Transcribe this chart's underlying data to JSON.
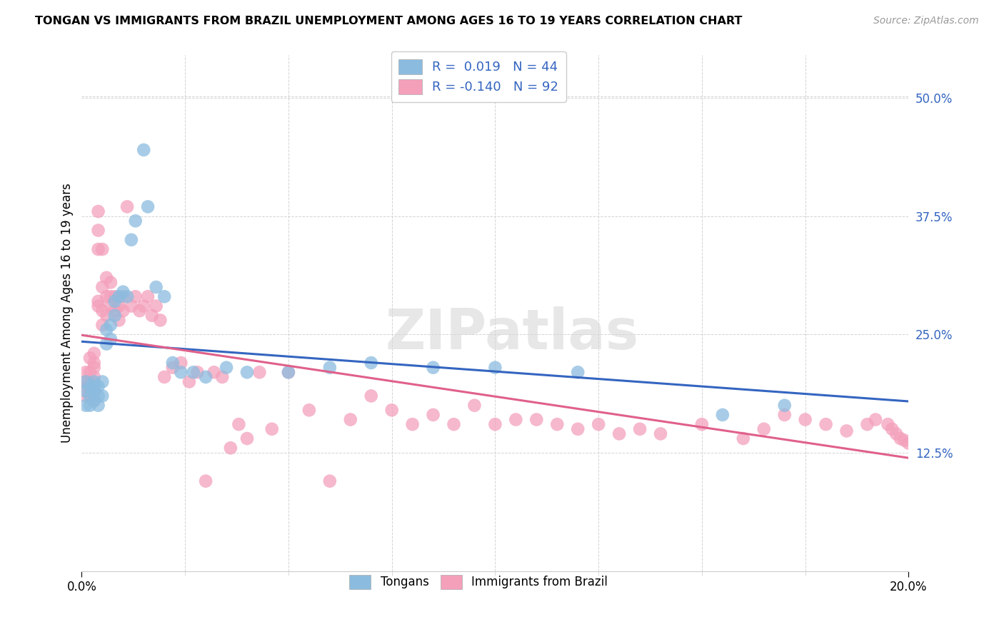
{
  "title": "TONGAN VS IMMIGRANTS FROM BRAZIL UNEMPLOYMENT AMONG AGES 16 TO 19 YEARS CORRELATION CHART",
  "source": "Source: ZipAtlas.com",
  "ylabel": "Unemployment Among Ages 16 to 19 years",
  "ylabel_right_ticks": [
    "50.0%",
    "37.5%",
    "25.0%",
    "12.5%"
  ],
  "ylabel_right_vals": [
    0.5,
    0.375,
    0.25,
    0.125
  ],
  "xmin": 0.0,
  "xmax": 0.2,
  "ymin": 0.0,
  "ymax": 0.545,
  "legend_entry1": "R =  0.019   N = 44",
  "legend_entry2": "R = -0.140   N = 92",
  "legend_label1": "Tongans",
  "legend_label2": "Immigrants from Brazil",
  "color_blue": "#8bbcdf",
  "color_pink": "#f4a0bb",
  "line_color_blue": "#3465c0",
  "line_color_pink": "#e0608a",
  "watermark_color": "#d8d8d8",
  "watermark": "ZIPatlas",
  "tongan_x": [
    0.001,
    0.001,
    0.001,
    0.002,
    0.002,
    0.002,
    0.003,
    0.003,
    0.003,
    0.003,
    0.004,
    0.004,
    0.004,
    0.005,
    0.005,
    0.006,
    0.006,
    0.007,
    0.007,
    0.008,
    0.008,
    0.009,
    0.01,
    0.011,
    0.012,
    0.013,
    0.015,
    0.016,
    0.018,
    0.02,
    0.022,
    0.024,
    0.027,
    0.03,
    0.035,
    0.04,
    0.05,
    0.06,
    0.07,
    0.085,
    0.1,
    0.12,
    0.155,
    0.17
  ],
  "tongan_y": [
    0.2,
    0.19,
    0.175,
    0.195,
    0.185,
    0.175,
    0.2,
    0.19,
    0.195,
    0.18,
    0.195,
    0.185,
    0.175,
    0.2,
    0.185,
    0.255,
    0.24,
    0.26,
    0.245,
    0.27,
    0.285,
    0.29,
    0.295,
    0.29,
    0.35,
    0.37,
    0.445,
    0.385,
    0.3,
    0.29,
    0.22,
    0.21,
    0.21,
    0.205,
    0.215,
    0.21,
    0.21,
    0.215,
    0.22,
    0.215,
    0.215,
    0.21,
    0.165,
    0.175
  ],
  "brazil_x": [
    0.001,
    0.001,
    0.001,
    0.001,
    0.002,
    0.002,
    0.002,
    0.002,
    0.002,
    0.003,
    0.003,
    0.003,
    0.003,
    0.003,
    0.003,
    0.004,
    0.004,
    0.004,
    0.004,
    0.004,
    0.005,
    0.005,
    0.005,
    0.005,
    0.006,
    0.006,
    0.006,
    0.007,
    0.007,
    0.007,
    0.008,
    0.008,
    0.009,
    0.009,
    0.01,
    0.01,
    0.011,
    0.012,
    0.013,
    0.014,
    0.015,
    0.016,
    0.017,
    0.018,
    0.019,
    0.02,
    0.022,
    0.024,
    0.026,
    0.028,
    0.03,
    0.032,
    0.034,
    0.036,
    0.038,
    0.04,
    0.043,
    0.046,
    0.05,
    0.055,
    0.06,
    0.065,
    0.07,
    0.075,
    0.08,
    0.085,
    0.09,
    0.095,
    0.1,
    0.105,
    0.11,
    0.115,
    0.12,
    0.125,
    0.13,
    0.135,
    0.14,
    0.15,
    0.16,
    0.165,
    0.17,
    0.175,
    0.18,
    0.185,
    0.19,
    0.192,
    0.195,
    0.196,
    0.197,
    0.198,
    0.199,
    0.2
  ],
  "brazil_y": [
    0.21,
    0.2,
    0.195,
    0.185,
    0.225,
    0.21,
    0.2,
    0.195,
    0.185,
    0.23,
    0.22,
    0.215,
    0.205,
    0.19,
    0.18,
    0.28,
    0.34,
    0.285,
    0.38,
    0.36,
    0.34,
    0.3,
    0.275,
    0.26,
    0.31,
    0.29,
    0.27,
    0.305,
    0.29,
    0.28,
    0.29,
    0.275,
    0.265,
    0.28,
    0.29,
    0.275,
    0.385,
    0.28,
    0.29,
    0.275,
    0.28,
    0.29,
    0.27,
    0.28,
    0.265,
    0.205,
    0.215,
    0.22,
    0.2,
    0.21,
    0.095,
    0.21,
    0.205,
    0.13,
    0.155,
    0.14,
    0.21,
    0.15,
    0.21,
    0.17,
    0.095,
    0.16,
    0.185,
    0.17,
    0.155,
    0.165,
    0.155,
    0.175,
    0.155,
    0.16,
    0.16,
    0.155,
    0.15,
    0.155,
    0.145,
    0.15,
    0.145,
    0.155,
    0.14,
    0.15,
    0.165,
    0.16,
    0.155,
    0.148,
    0.155,
    0.16,
    0.155,
    0.15,
    0.145,
    0.14,
    0.138,
    0.135
  ]
}
